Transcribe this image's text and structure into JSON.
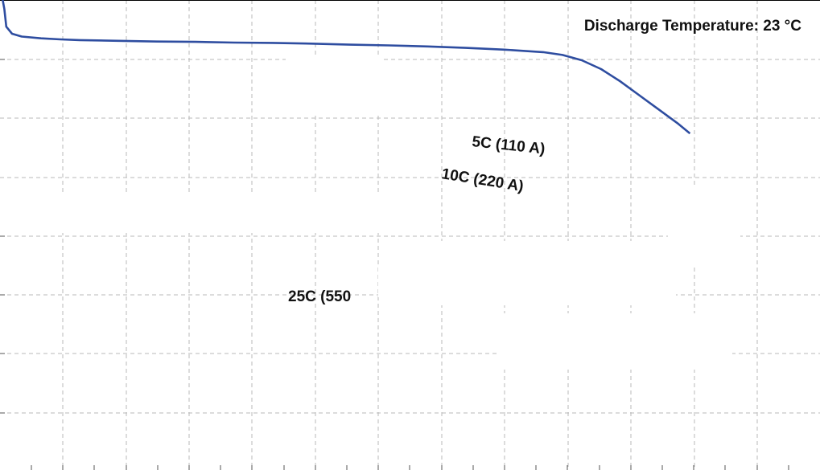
{
  "chart_data": {
    "type": "line",
    "title": "Discharge Temperature: 23 °C",
    "xlabel": "",
    "ylabel": "",
    "grid": true,
    "series": [
      {
        "name": "5C (110 A)",
        "color": "#2e4da0",
        "points": [
          [
            0.0,
            2.0
          ],
          [
            0.05,
            2.3
          ],
          [
            0.1,
            2.8
          ],
          [
            0.25,
            3.0
          ],
          [
            0.5,
            3.08
          ],
          [
            1.0,
            3.13
          ],
          [
            1.5,
            3.16
          ],
          [
            2.0,
            3.18
          ],
          [
            3.0,
            3.2
          ],
          [
            4.0,
            3.22
          ],
          [
            5.0,
            3.23
          ],
          [
            6.0,
            3.25
          ],
          [
            7.0,
            3.26
          ],
          [
            8.0,
            3.28
          ],
          [
            9.0,
            3.31
          ],
          [
            10.0,
            3.33
          ],
          [
            11.0,
            3.36
          ],
          [
            12.0,
            3.4
          ],
          [
            13.0,
            3.45
          ],
          [
            14.0,
            3.52
          ],
          [
            14.5,
            3.6
          ],
          [
            15.0,
            3.75
          ],
          [
            15.5,
            4.0
          ],
          [
            16.0,
            4.35
          ],
          [
            16.5,
            4.75
          ],
          [
            17.0,
            5.15
          ],
          [
            17.5,
            5.55
          ],
          [
            17.8,
            5.82
          ]
        ]
      },
      {
        "name": "10C (220 A)"
      },
      {
        "name": "25C (550"
      }
    ]
  }
}
